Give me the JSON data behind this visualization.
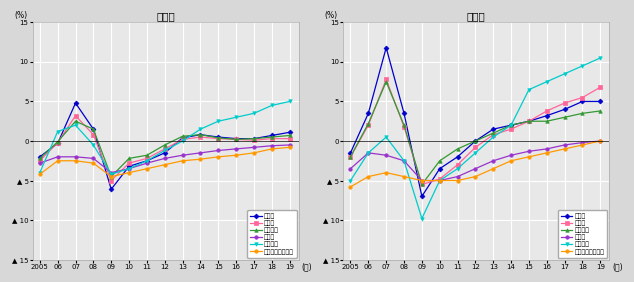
{
  "years": [
    2005,
    2006,
    2007,
    2008,
    2009,
    2010,
    2011,
    2012,
    2013,
    2014,
    2015,
    2016,
    2017,
    2018,
    2019
  ],
  "residential": {
    "tokyo": [
      -2.0,
      -0.3,
      4.8,
      1.5,
      -6.1,
      -3.2,
      -2.5,
      -1.5,
      0.4,
      0.8,
      0.5,
      0.3,
      0.3,
      0.7,
      1.1
    ],
    "osaka": [
      -2.5,
      -0.2,
      3.2,
      0.8,
      -5.0,
      -2.8,
      -2.2,
      -1.0,
      0.2,
      0.5,
      0.3,
      0.2,
      0.1,
      0.3,
      0.3
    ],
    "nagoya": [
      -2.2,
      -0.1,
      2.5,
      1.5,
      -4.5,
      -2.2,
      -1.8,
      -0.5,
      0.6,
      0.8,
      0.4,
      0.2,
      0.3,
      0.5,
      0.7
    ],
    "chiho": [
      -2.8,
      -2.0,
      -2.0,
      -2.2,
      -4.0,
      -3.5,
      -2.8,
      -2.2,
      -1.8,
      -1.5,
      -1.2,
      -1.0,
      -0.8,
      -0.6,
      -0.5
    ],
    "chiho4shi": [
      -4.0,
      1.2,
      2.0,
      -0.5,
      -4.2,
      -3.5,
      -2.5,
      -1.2,
      0.0,
      1.5,
      2.5,
      3.0,
      3.5,
      4.5,
      5.0
    ],
    "chiho_other": [
      -4.2,
      -2.5,
      -2.5,
      -2.8,
      -4.5,
      -4.0,
      -3.5,
      -3.0,
      -2.5,
      -2.3,
      -2.0,
      -1.8,
      -1.5,
      -1.0,
      -0.8
    ]
  },
  "commercial": {
    "tokyo": [
      -1.5,
      3.5,
      11.8,
      3.5,
      -7.0,
      -3.5,
      -2.0,
      0.0,
      1.5,
      2.0,
      2.5,
      3.2,
      4.0,
      5.0,
      5.0
    ],
    "osaka": [
      -2.0,
      2.0,
      7.8,
      1.8,
      -5.5,
      -4.8,
      -3.0,
      -0.8,
      0.8,
      1.5,
      2.5,
      3.8,
      4.8,
      5.5,
      6.8
    ],
    "nagoya": [
      -2.0,
      2.2,
      7.5,
      2.0,
      -5.5,
      -2.5,
      -1.0,
      0.0,
      1.0,
      2.0,
      2.5,
      2.5,
      3.0,
      3.5,
      3.8
    ],
    "chiho": [
      -3.5,
      -1.5,
      -1.8,
      -2.5,
      -5.0,
      -5.0,
      -4.5,
      -3.5,
      -2.5,
      -1.8,
      -1.3,
      -1.0,
      -0.5,
      -0.2,
      0.0
    ],
    "chiho4shi": [
      -5.0,
      -1.5,
      0.5,
      -2.5,
      -9.8,
      -5.0,
      -3.5,
      -1.5,
      0.5,
      2.0,
      6.5,
      7.5,
      8.5,
      9.5,
      10.5
    ],
    "chiho_other": [
      -5.8,
      -4.5,
      -4.0,
      -4.5,
      -5.0,
      -5.0,
      -5.0,
      -4.5,
      -3.5,
      -2.5,
      -2.0,
      -1.5,
      -1.0,
      -0.5,
      0.0
    ]
  },
  "series_labels": [
    "東京圈",
    "大阪圈",
    "名古屋圈",
    "地方圈",
    "地方四市",
    "地方圈（その他）"
  ],
  "colors": [
    "#0000cc",
    "#ff6699",
    "#339933",
    "#9933cc",
    "#00cccc",
    "#ff9900"
  ],
  "markers": [
    "D",
    "s",
    "^",
    "o",
    "v",
    "o"
  ],
  "title_residential": "住宅地",
  "title_commercial": "商業地",
  "ylabel": "(%)",
  "xlabel": "(年)",
  "ylim": [
    -15,
    15
  ],
  "bg_color": "#d8d8d8",
  "plot_bg_color": "#e8e8e8",
  "grid_color": "#ffffff"
}
